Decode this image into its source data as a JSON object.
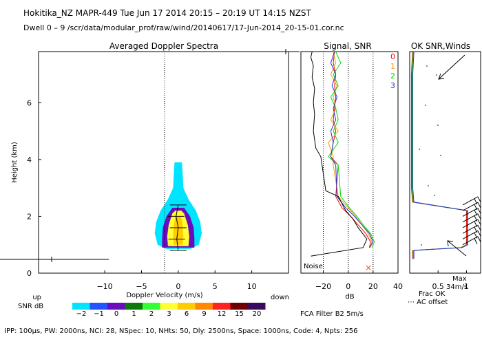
{
  "header": {
    "title": "Hokitika_NZ   MAPR-449   Tue Jun 17 2014 20:15  –  20:19 UT 14:15 NZST",
    "subtitle": "Dwell  0 –  9   /scr/data/modular_prof/raw/wind/20140617/17-Jun-2014_20-15-01.cor.nc"
  },
  "footer": {
    "params": "IPP: 100μs,  PW: 2000ns,  NCI:  28,  NSpec: 10, NHts: 50,  Dly: 2500ns,  Space: 1000ns,  Code: 4,  Npts: 256",
    "filter": "FCA Filter B2   5m/s"
  },
  "snr_scale": {
    "title": "SNR dB",
    "up": "up",
    "down": "down",
    "labels": [
      "−2",
      "−1",
      "0",
      "1",
      "2",
      "3",
      "6",
      "9",
      "12",
      "15",
      "20"
    ],
    "colors": [
      "#00e5ff",
      "#2255ff",
      "#6a0dbd",
      "#0a7a0a",
      "#33ff33",
      "#ffff33",
      "#ffcc00",
      "#ff8800",
      "#ff2222",
      "#6e0000",
      "#3a0b5c"
    ]
  },
  "colors": {
    "series0": "#ff0000",
    "series1": "#ff9900",
    "series2": "#00dd00",
    "series3": "#2233cc",
    "noise": "#000000"
  },
  "chart_data": [
    {
      "type": "heatmap",
      "title": "Averaged Doppler Spectra",
      "xlabel": "Doppler Velocity (m/s)",
      "ylabel": "Height (km)",
      "xlim": [
        -19,
        15
      ],
      "ylim": [
        0,
        7.8
      ],
      "xticks": [
        -10,
        -5,
        0,
        5,
        10
      ],
      "yticks": [
        0,
        2,
        4,
        6
      ],
      "levels": [
        {
          "snr": -2,
          "half_width": [
            [
              0.85,
              1.6
            ],
            [
              1.0,
              2.8
            ],
            [
              1.4,
              3.2
            ],
            [
              1.8,
              3.0
            ],
            [
              2.2,
              2.4
            ],
            [
              2.6,
              1.4
            ],
            [
              3.0,
              0.7
            ],
            [
              3.5,
              0.6
            ],
            [
              3.9,
              0.5
            ]
          ]
        },
        {
          "snr": 0,
          "half_width": [
            [
              0.9,
              2.2
            ],
            [
              1.2,
              2.2
            ],
            [
              1.6,
              2.1
            ],
            [
              2.0,
              1.6
            ],
            [
              2.3,
              0.8
            ]
          ]
        },
        {
          "snr": 3,
          "half_width": [
            [
              0.95,
              1.4
            ],
            [
              1.3,
              1.5
            ],
            [
              1.7,
              1.3
            ],
            [
              2.1,
              0.8
            ],
            [
              2.2,
              0.4
            ]
          ]
        },
        {
          "snr": 6,
          "half_width": [
            [
              1.0,
              0.6
            ],
            [
              1.3,
              0.7
            ],
            [
              1.7,
              0.6
            ],
            [
              2.0,
              0.4
            ]
          ]
        }
      ],
      "mean_velocity_line": [
        [
          0.8,
          0.0
        ],
        [
          1.2,
          -0.2
        ],
        [
          1.6,
          0.0
        ],
        [
          2.0,
          -0.3
        ],
        [
          2.4,
          0.0
        ]
      ],
      "ground_clutter_marker_height": 0.55,
      "top_marker_height": 7.8
    },
    {
      "type": "line",
      "title": "Signal, SNR",
      "xlabel": "dB",
      "xlim": [
        -38,
        40
      ],
      "ylim": [
        0,
        7.8
      ],
      "xticks": [
        -20,
        0,
        20,
        40
      ],
      "reference_lines": [
        -20,
        0,
        20
      ],
      "annotation": "Noise",
      "series": [
        {
          "name": "0",
          "x": [
            17,
            18,
            14,
            8,
            2,
            -5,
            -10,
            -8,
            -14,
            -12,
            -10,
            -12,
            -11,
            -10,
            -11,
            -10,
            -12,
            -11
          ],
          "y": [
            0.9,
            1.1,
            1.4,
            1.7,
            2.0,
            2.3,
            2.7,
            3.8,
            4.1,
            4.6,
            5.0,
            5.4,
            5.8,
            6.2,
            6.6,
            7.0,
            7.4,
            7.8
          ]
        },
        {
          "name": "1",
          "x": [
            18,
            19,
            16,
            11,
            6,
            0,
            -8,
            -12,
            -12,
            -16,
            -8,
            -14,
            -10,
            -12,
            -9,
            -14,
            -10,
            -12
          ],
          "y": [
            0.9,
            1.1,
            1.4,
            1.7,
            2.0,
            2.3,
            2.7,
            3.8,
            4.1,
            4.6,
            5.0,
            5.4,
            5.8,
            6.2,
            6.6,
            7.0,
            7.4,
            7.8
          ]
        },
        {
          "name": "2",
          "x": [
            19,
            21,
            18,
            12,
            7,
            1,
            -6,
            -8,
            -16,
            -8,
            -12,
            -8,
            -10,
            -14,
            -8,
            -12,
            -6,
            -10
          ],
          "y": [
            0.9,
            1.1,
            1.4,
            1.7,
            2.0,
            2.3,
            2.7,
            3.8,
            4.1,
            4.6,
            5.0,
            5.4,
            5.8,
            6.2,
            6.6,
            7.0,
            7.4,
            7.8
          ]
        },
        {
          "name": "3",
          "x": [
            17,
            20,
            17,
            11,
            5,
            -2,
            -9,
            -10,
            -14,
            -12,
            -14,
            -10,
            -12,
            -9,
            -13,
            -10,
            -14,
            -11
          ],
          "y": [
            0.9,
            1.1,
            1.4,
            1.7,
            2.0,
            2.3,
            2.7,
            3.8,
            4.1,
            4.6,
            5.0,
            5.4,
            5.8,
            6.2,
            6.6,
            7.0,
            7.4,
            7.8
          ]
        },
        {
          "name": "Noise",
          "x": [
            -30,
            12,
            15,
            8,
            4,
            -2,
            -8,
            -18,
            -22,
            -26,
            -28,
            -27,
            -28,
            -27,
            -29,
            -28,
            -30,
            -29
          ],
          "y": [
            0.6,
            0.9,
            1.2,
            1.6,
            1.9,
            2.2,
            2.7,
            2.9,
            4.1,
            4.4,
            5.0,
            5.6,
            6.0,
            6.5,
            6.9,
            7.3,
            7.6,
            7.8
          ]
        }
      ]
    },
    {
      "type": "line",
      "title": "OK SNR,Winds",
      "xlabel": "Frac OK",
      "xlim": [
        0,
        1.25
      ],
      "ylim": [
        0,
        7.8
      ],
      "xticks": [
        0.5,
        1
      ],
      "xticklabels": [
        "0.5",
        "1"
      ],
      "annotation": "⋯ AC offset",
      "max_wind_label": "Max",
      "max_wind_value": "34m/s",
      "series": [
        {
          "name": "frac_ok",
          "x": [
            0.05,
            0.05,
            0.9,
            1.0,
            1.0,
            0.05,
            0.03,
            0.03,
            0.05
          ],
          "y": [
            0.5,
            0.8,
            0.9,
            1.0,
            2.2,
            2.5,
            3.0,
            7.0,
            7.8
          ]
        }
      ],
      "wind_barb_heights": [
        1.0,
        1.2,
        1.4,
        1.6,
        1.8,
        2.0,
        2.2,
        2.4
      ]
    }
  ]
}
